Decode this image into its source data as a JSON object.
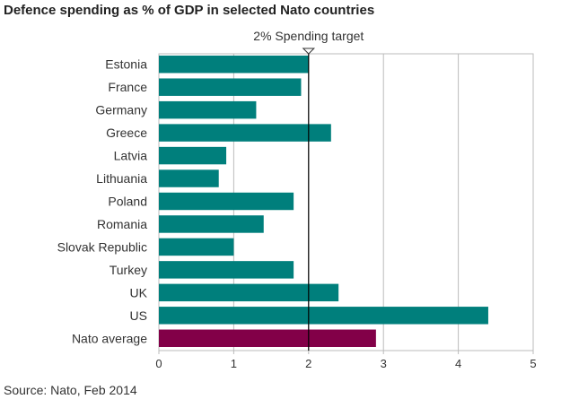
{
  "chart_data": {
    "type": "bar",
    "orientation": "horizontal",
    "title": "Defence spending as % of GDP in selected Nato countries",
    "source": "Source: Nato, Feb 2014",
    "categories": [
      "Estonia",
      "France",
      "Germany",
      "Greece",
      "Latvia",
      "Lithuania",
      "Poland",
      "Romania",
      "Slovak Republic",
      "Turkey",
      "UK",
      "US",
      "Nato average"
    ],
    "values": [
      2.0,
      1.9,
      1.3,
      2.3,
      0.9,
      0.8,
      1.8,
      1.4,
      1.0,
      1.8,
      2.4,
      4.4,
      2.9
    ],
    "xlim": [
      0,
      5
    ],
    "xticks": [
      "0",
      "1",
      "2",
      "3",
      "4",
      "5"
    ],
    "grid": "vertical",
    "reference_line": {
      "value": 2,
      "label": "2% Spending target"
    },
    "colors": {
      "bar": "#007f7c",
      "highlight": "#820048",
      "highlight_category": "Nato average",
      "grid": "#bbbbbb",
      "target_line": "#000000"
    }
  }
}
